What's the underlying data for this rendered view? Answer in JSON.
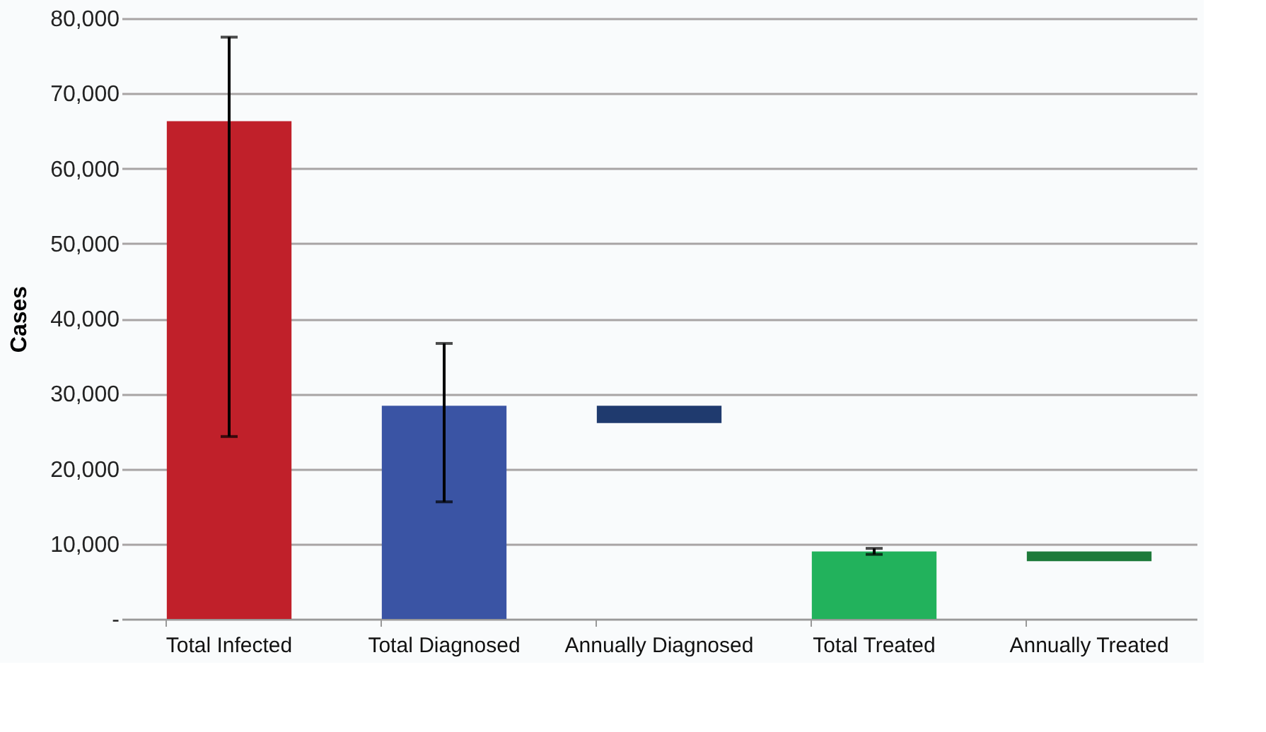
{
  "chart_data": {
    "type": "bar",
    "ylabel": "Cases",
    "categories": [
      "Total Infected",
      "Total Diagnosed",
      "Annually Diagnosed",
      "Total Treated",
      "Annually Treated"
    ],
    "values": [
      66300,
      28400,
      2300,
      9000,
      1300
    ],
    "base": [
      0,
      0,
      26100,
      0,
      7700
    ],
    "colors": [
      "#c0202a",
      "#3a54a4",
      "#1f3a6e",
      "#22b25c",
      "#1e7a3a"
    ],
    "errors": [
      [
        24300,
        77500
      ],
      [
        15600,
        36700
      ],
      null,
      [
        8600,
        9400
      ],
      null
    ],
    "ylim": [
      0,
      80000
    ],
    "yticks": [
      {
        "value": 0,
        "label": "-"
      },
      {
        "value": 10000,
        "label": "10,000"
      },
      {
        "value": 20000,
        "label": "20,000"
      },
      {
        "value": 30000,
        "label": "30,000"
      },
      {
        "value": 40000,
        "label": "40,000"
      },
      {
        "value": 50000,
        "label": "50,000"
      },
      {
        "value": 60000,
        "label": "60,000"
      },
      {
        "value": 70000,
        "label": "70,000"
      },
      {
        "value": 80000,
        "label": "80,000"
      }
    ],
    "grid": "y"
  }
}
